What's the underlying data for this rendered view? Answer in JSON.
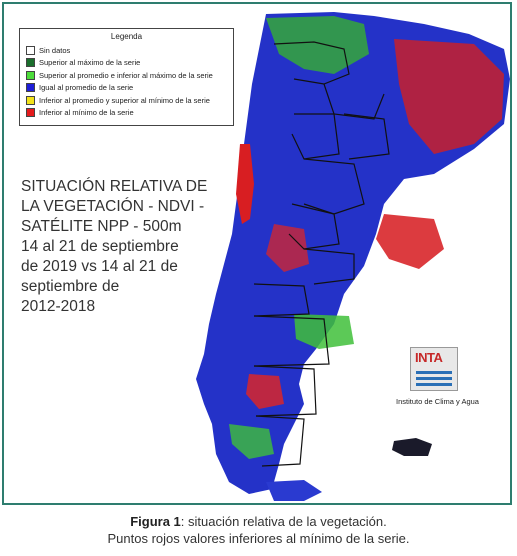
{
  "legend": {
    "title": "Legenda",
    "items": [
      {
        "label": "Sin datos",
        "color": "#ffffff"
      },
      {
        "label": "Superior al máximo de la serie",
        "color": "#1a6e2c"
      },
      {
        "label": "Superior al promedio e inferior al máximo de la serie",
        "color": "#4cdc3a"
      },
      {
        "label": "Igual al promedio de la serie",
        "color": "#1e1ed8"
      },
      {
        "label": "Inferior al promedio y superior al mínimo de la serie",
        "color": "#f2e21a"
      },
      {
        "label": "Inferior al mínimo de la serie",
        "color": "#e41a1c"
      }
    ]
  },
  "map_title": {
    "line1": "SITUACIÓN RELATIVA DE",
    "line2": "LA VEGETACIÓN - NDVI -",
    "line3": "SATÉLITE NPP - 500m",
    "line4": "14 al 21 de septiembre",
    "line5": "de 2019 vs 14 al 21 de",
    "line6": "septiembre de",
    "line7": "2012-2018"
  },
  "logo": {
    "text": "INTA",
    "institute": "Instituto de Clima y Agua"
  },
  "caption": {
    "label": "Figura 1",
    "line1_rest": ": situación relativa de la vegetación.",
    "line2": "Puntos rojos valores inferiores al mínimo de la serie."
  }
}
